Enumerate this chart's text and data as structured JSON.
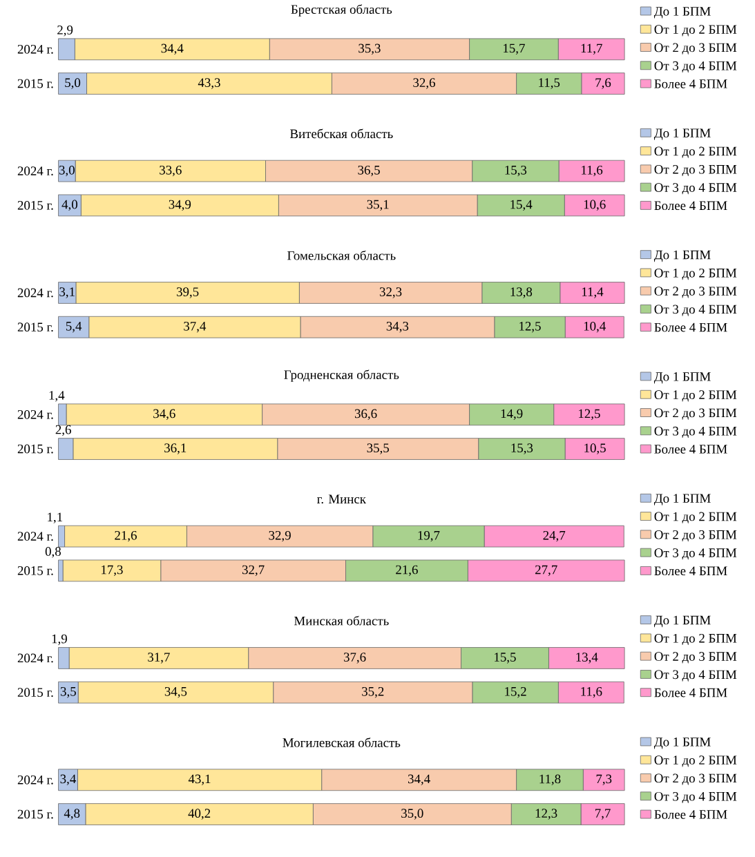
{
  "chart_data": [
    {
      "type": "bar",
      "orientation": "horizontal",
      "stacked": true,
      "legend": "right",
      "title": "Брестская область",
      "categories": [
        "2024 г.",
        "2015 г."
      ],
      "series": [
        {
          "name": "До 1 БПМ",
          "color": "#b4c7e7",
          "values": [
            2.9,
            5.0
          ],
          "value_labels": [
            "2,9",
            "5,0"
          ]
        },
        {
          "name": "От 1 до 2 БПМ",
          "color": "#ffe699",
          "values": [
            34.4,
            43.3
          ],
          "value_labels": [
            "34,4",
            "43,3"
          ]
        },
        {
          "name": "От 2 до 3 БПМ",
          "color": "#f8cbad",
          "values": [
            35.3,
            32.6
          ],
          "value_labels": [
            "35,3",
            "32,6"
          ]
        },
        {
          "name": "От 3 до 4 БПМ",
          "color": "#a9d18e",
          "values": [
            15.7,
            11.5
          ],
          "value_labels": [
            "15,7",
            "11,5"
          ]
        },
        {
          "name": "Более 4 БПМ",
          "color": "#ff99cc",
          "values": [
            11.7,
            7.6
          ],
          "value_labels": [
            "11,7",
            "7,6"
          ]
        }
      ]
    },
    {
      "type": "bar",
      "orientation": "horizontal",
      "stacked": true,
      "legend": "right",
      "title": "Витебская область",
      "categories": [
        "2024 г.",
        "2015 г."
      ],
      "series": [
        {
          "name": "До 1 БПМ",
          "color": "#b4c7e7",
          "values": [
            3.0,
            4.0
          ],
          "value_labels": [
            "3,0",
            "4,0"
          ]
        },
        {
          "name": "От 1 до 2 БПМ",
          "color": "#ffe699",
          "values": [
            33.6,
            34.9
          ],
          "value_labels": [
            "33,6",
            "34,9"
          ]
        },
        {
          "name": "От 2 до 3 БПМ",
          "color": "#f8cbad",
          "values": [
            36.5,
            35.1
          ],
          "value_labels": [
            "36,5",
            "35,1"
          ]
        },
        {
          "name": "От 3 до 4 БПМ",
          "color": "#a9d18e",
          "values": [
            15.3,
            15.4
          ],
          "value_labels": [
            "15,3",
            "15,4"
          ]
        },
        {
          "name": "Более 4 БПМ",
          "color": "#ff99cc",
          "values": [
            11.6,
            10.6
          ],
          "value_labels": [
            "11,6",
            "10,6"
          ]
        }
      ]
    },
    {
      "type": "bar",
      "orientation": "horizontal",
      "stacked": true,
      "legend": "right",
      "title": "Гомельская область",
      "categories": [
        "2024 г.",
        "2015 г."
      ],
      "series": [
        {
          "name": "До 1 БПМ",
          "color": "#b4c7e7",
          "values": [
            3.1,
            5.4
          ],
          "value_labels": [
            "3,1",
            "5,4"
          ]
        },
        {
          "name": "От 1 до 2 БПМ",
          "color": "#ffe699",
          "values": [
            39.5,
            37.4
          ],
          "value_labels": [
            "39,5",
            "37,4"
          ]
        },
        {
          "name": "От 2 до 3 БПМ",
          "color": "#f8cbad",
          "values": [
            32.3,
            34.3
          ],
          "value_labels": [
            "32,3",
            "34,3"
          ]
        },
        {
          "name": "От 3 до 4 БПМ",
          "color": "#a9d18e",
          "values": [
            13.8,
            12.5
          ],
          "value_labels": [
            "13,8",
            "12,5"
          ]
        },
        {
          "name": "Более 4 БПМ",
          "color": "#ff99cc",
          "values": [
            11.4,
            10.4
          ],
          "value_labels": [
            "11,4",
            "10,4"
          ]
        }
      ]
    },
    {
      "type": "bar",
      "orientation": "horizontal",
      "stacked": true,
      "legend": "right",
      "title": "Гродненская область",
      "categories": [
        "2024 г.",
        "2015 г."
      ],
      "series": [
        {
          "name": "До 1 БПМ",
          "color": "#b4c7e7",
          "values": [
            1.4,
            2.6
          ],
          "value_labels": [
            "1,4",
            "2,6"
          ]
        },
        {
          "name": "От 1 до 2 БПМ",
          "color": "#ffe699",
          "values": [
            34.6,
            36.1
          ],
          "value_labels": [
            "34,6",
            "36,1"
          ]
        },
        {
          "name": "От 2 до 3 БПМ",
          "color": "#f8cbad",
          "values": [
            36.6,
            35.5
          ],
          "value_labels": [
            "36,6",
            "35,5"
          ]
        },
        {
          "name": "От 3 до 4 БПМ",
          "color": "#a9d18e",
          "values": [
            14.9,
            15.3
          ],
          "value_labels": [
            "14,9",
            "15,3"
          ]
        },
        {
          "name": "Более 4 БПМ",
          "color": "#ff99cc",
          "values": [
            12.5,
            10.5
          ],
          "value_labels": [
            "12,5",
            "10,5"
          ]
        }
      ]
    },
    {
      "type": "bar",
      "orientation": "horizontal",
      "stacked": true,
      "legend": "right",
      "title": "г. Минск",
      "categories": [
        "2024 г.",
        "2015 г."
      ],
      "series": [
        {
          "name": "До 1 БПМ",
          "color": "#b4c7e7",
          "values": [
            1.1,
            0.8
          ],
          "value_labels": [
            "1,1",
            "0,8"
          ]
        },
        {
          "name": "От 1 до 2 БПМ",
          "color": "#ffe699",
          "values": [
            21.6,
            17.3
          ],
          "value_labels": [
            "21,6",
            "17,3"
          ]
        },
        {
          "name": "От 2 до 3 БПМ",
          "color": "#f8cbad",
          "values": [
            32.9,
            32.7
          ],
          "value_labels": [
            "32,9",
            "32,7"
          ]
        },
        {
          "name": "От 3 до 4 БПМ",
          "color": "#a9d18e",
          "values": [
            19.7,
            21.6
          ],
          "value_labels": [
            "19,7",
            "21,6"
          ]
        },
        {
          "name": "Более 4 БПМ",
          "color": "#ff99cc",
          "values": [
            24.7,
            27.7
          ],
          "value_labels": [
            "24,7",
            "27,7"
          ]
        }
      ]
    },
    {
      "type": "bar",
      "orientation": "horizontal",
      "stacked": true,
      "legend": "right",
      "title": "Минская область",
      "categories": [
        "2024 г.",
        "2015 г."
      ],
      "series": [
        {
          "name": "До 1 БПМ",
          "color": "#b4c7e7",
          "values": [
            1.9,
            3.5
          ],
          "value_labels": [
            "1,9",
            "3,5"
          ]
        },
        {
          "name": "От 1 до 2 БПМ",
          "color": "#ffe699",
          "values": [
            31.7,
            34.5
          ],
          "value_labels": [
            "31,7",
            "34,5"
          ]
        },
        {
          "name": "От 2 до 3 БПМ",
          "color": "#f8cbad",
          "values": [
            37.6,
            35.2
          ],
          "value_labels": [
            "37,6",
            "35,2"
          ]
        },
        {
          "name": "От 3 до 4 БПМ",
          "color": "#a9d18e",
          "values": [
            15.5,
            15.2
          ],
          "value_labels": [
            "15,5",
            "15,2"
          ]
        },
        {
          "name": "Более 4 БПМ",
          "color": "#ff99cc",
          "values": [
            13.4,
            11.6
          ],
          "value_labels": [
            "13,4",
            "11,6"
          ]
        }
      ]
    },
    {
      "type": "bar",
      "orientation": "horizontal",
      "stacked": true,
      "legend": "right",
      "title": "Могилевская область",
      "categories": [
        "2024 г.",
        "2015 г."
      ],
      "series": [
        {
          "name": "До 1 БПМ",
          "color": "#b4c7e7",
          "values": [
            3.4,
            4.8
          ],
          "value_labels": [
            "3,4",
            "4,8"
          ]
        },
        {
          "name": "От 1 до 2 БПМ",
          "color": "#ffe699",
          "values": [
            43.1,
            40.2
          ],
          "value_labels": [
            "43,1",
            "40,2"
          ]
        },
        {
          "name": "От 2 до 3 БПМ",
          "color": "#f8cbad",
          "values": [
            34.4,
            35.0
          ],
          "value_labels": [
            "34,4",
            "35,0"
          ]
        },
        {
          "name": "От 3 до 4 БПМ",
          "color": "#a9d18e",
          "values": [
            11.8,
            12.3
          ],
          "value_labels": [
            "11,8",
            "12,3"
          ]
        },
        {
          "name": "Более 4 БПМ",
          "color": "#ff99cc",
          "values": [
            7.3,
            7.7
          ],
          "value_labels": [
            "7,3",
            "7,7"
          ]
        }
      ]
    }
  ]
}
